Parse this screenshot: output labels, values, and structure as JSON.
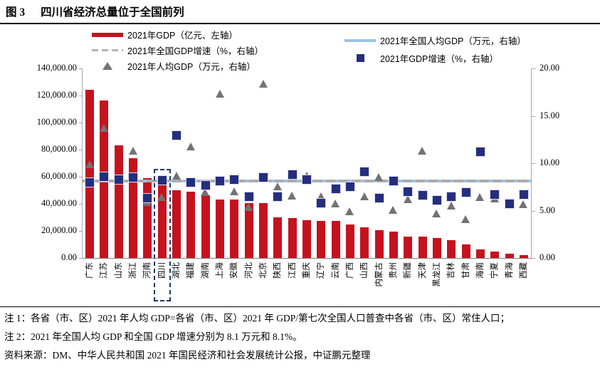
{
  "title": {
    "figure_label": "图 3",
    "text": "四川省经济总量位于全国前列"
  },
  "legend": {
    "gdp_bar": "2021年GDP（亿元、左轴）",
    "national_growth": "2021年全国GDP增速（%，右轴）",
    "per_capita": "2021年人均GDP（万元，右轴）",
    "national_per_capita": "2021年全国人均GDP（万元，右轴）",
    "growth": "2021年GDP增速（%，右轴）"
  },
  "chart_data": {
    "type": "bar",
    "title": "四川省经济总量位于全国前列",
    "categories": [
      "广东",
      "江苏",
      "山东",
      "浙江",
      "河南",
      "四川",
      "湖北",
      "福建",
      "湖南",
      "上海",
      "安徽",
      "河北",
      "北京",
      "陕西",
      "江西",
      "重庆",
      "辽宁",
      "云南",
      "广西",
      "山西",
      "内蒙古",
      "贵州",
      "新疆",
      "天津",
      "黑龙江",
      "吉林",
      "甘肃",
      "海南",
      "宁夏",
      "青海",
      "西藏"
    ],
    "series": [
      {
        "name": "2021年GDP（亿元、左轴）",
        "kind": "bar",
        "axis": "left",
        "color": "#C5121F",
        "values": [
          124369.67,
          116364.2,
          83095.9,
          73516.0,
          58887.41,
          53850.79,
          50012.94,
          48810.36,
          46063.09,
          43214.85,
          42959.2,
          40391.3,
          40269.6,
          29800.98,
          29619.7,
          27894.02,
          27584.1,
          27146.76,
          24740.86,
          22590.16,
          20514.2,
          19586.42,
          15983.65,
          15695.05,
          14879.2,
          13235.52,
          10243.3,
          6475.2,
          4522.31,
          3346.63,
          2080.17
        ]
      },
      {
        "name": "2021年GDP增速（%，右轴）",
        "kind": "scatter-square",
        "axis": "right",
        "color": "#252E7E",
        "values": [
          8.0,
          8.6,
          8.3,
          8.5,
          6.3,
          8.2,
          12.9,
          8.0,
          7.7,
          8.1,
          8.3,
          6.5,
          8.5,
          6.5,
          8.8,
          8.3,
          5.8,
          7.3,
          7.5,
          9.1,
          6.3,
          8.1,
          7.0,
          6.6,
          6.1,
          6.5,
          6.9,
          11.2,
          6.7,
          5.7,
          6.7
        ]
      },
      {
        "name": "2021年人均GDP（万元，右轴）",
        "kind": "scatter-triangle",
        "axis": "right",
        "color": "#737373",
        "values": [
          9.87,
          13.7,
          8.18,
          11.3,
          5.93,
          6.44,
          8.66,
          11.76,
          6.94,
          17.36,
          7.04,
          5.41,
          18.4,
          7.54,
          6.55,
          8.69,
          6.48,
          5.75,
          4.94,
          6.47,
          8.53,
          5.08,
          6.18,
          11.33,
          4.67,
          5.5,
          4.09,
          6.42,
          6.28,
          5.65,
          5.7
        ]
      },
      {
        "name": "2021年全国人均GDP（万元，右轴）",
        "kind": "hline",
        "axis": "right",
        "color": "#9DC3E6",
        "value": 8.1
      },
      {
        "name": "2021年全国GDP增速（%，右轴）",
        "kind": "hline-dashed",
        "axis": "right",
        "color": "#ABABAB",
        "value": 8.1
      }
    ],
    "left_axis": {
      "min": 0,
      "max": 140000,
      "step": 20000,
      "tick_labels": [
        "140,000.00",
        "120,000.00",
        "100,000.00",
        "80,000.00",
        "60,000.00",
        "40,000.00",
        "20,000.00",
        "0.00"
      ]
    },
    "right_axis": {
      "min": 0,
      "max": 20,
      "step": 5,
      "tick_labels": [
        "20.00",
        "15.00",
        "10.00",
        "5.00",
        "0.00"
      ]
    },
    "highlight_category": "四川",
    "legend_position": "top",
    "grid": false
  },
  "notes": {
    "note1": "注 1：各省（市、区）2021 年人均 GDP=各省（市、区）2021 年 GDP/第七次全国人口普查中各省（市、区）常住人口；",
    "note2": "注 2：2021 年全国人均 GDP 和全国 GDP 增速分别为 8.1 万元和 8.1%。",
    "source": "资料来源：DM、中华人民共和国 2021 年国民经济和社会发展统计公报，中证鹏元整理"
  },
  "colors": {
    "bar_red": "#C5121F",
    "square_navy": "#252E7E",
    "triangle_gray": "#737373",
    "national_line_blue": "#9DC3E6",
    "national_dash_gray": "#ABABAB",
    "highlight_navy": "#1F3864"
  }
}
